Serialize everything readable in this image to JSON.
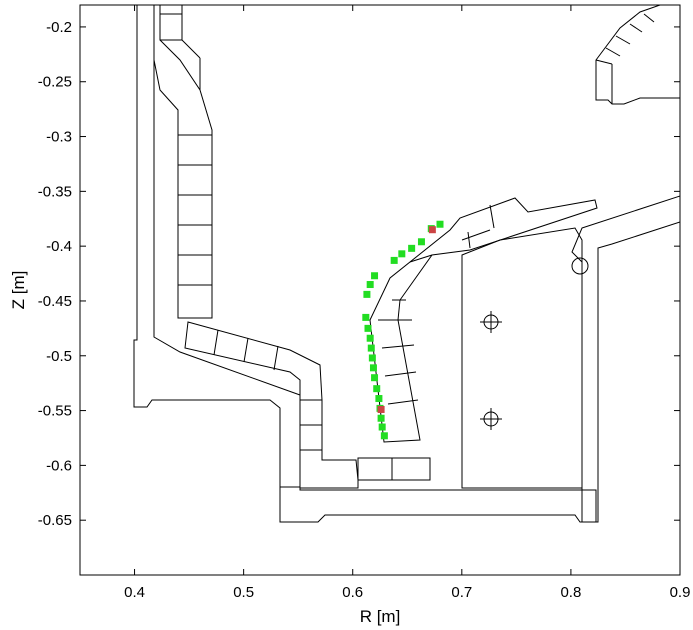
{
  "chart_data": {
    "type": "scatter",
    "xlabel": "R [m]",
    "ylabel": "Z [m]",
    "xlim": [
      0.35,
      0.9
    ],
    "ylim": [
      -0.7,
      -0.18
    ],
    "x_ticks": [
      "0.4",
      "0.5",
      "0.6",
      "0.7",
      "0.8",
      "0.9"
    ],
    "y_ticks": [
      "-0.2",
      "-0.25",
      "-0.3",
      "-0.35",
      "-0.4",
      "-0.45",
      "-0.5",
      "-0.55",
      "-0.6",
      "-0.65"
    ],
    "grid": false,
    "legend": "none",
    "series": [
      {
        "marker_color": "#22dd22",
        "x": [
          0.68,
          0.672,
          0.663,
          0.654,
          0.645,
          0.638,
          0.62,
          0.616,
          0.613,
          0.612,
          0.614,
          0.616,
          0.617,
          0.618,
          0.619,
          0.62,
          0.622,
          0.624,
          0.625,
          0.626,
          0.627,
          0.629
        ],
        "y": [
          -0.38,
          -0.384,
          -0.396,
          -0.402,
          -0.407,
          -0.413,
          -0.427,
          -0.435,
          -0.444,
          -0.465,
          -0.475,
          -0.484,
          -0.493,
          -0.502,
          -0.511,
          -0.52,
          -0.53,
          -0.539,
          -0.548,
          -0.557,
          -0.565,
          -0.573
        ]
      },
      {
        "marker_color": "#cc4444",
        "x": [
          0.673,
          0.626
        ],
        "y": [
          -0.385,
          -0.549
        ]
      }
    ]
  }
}
